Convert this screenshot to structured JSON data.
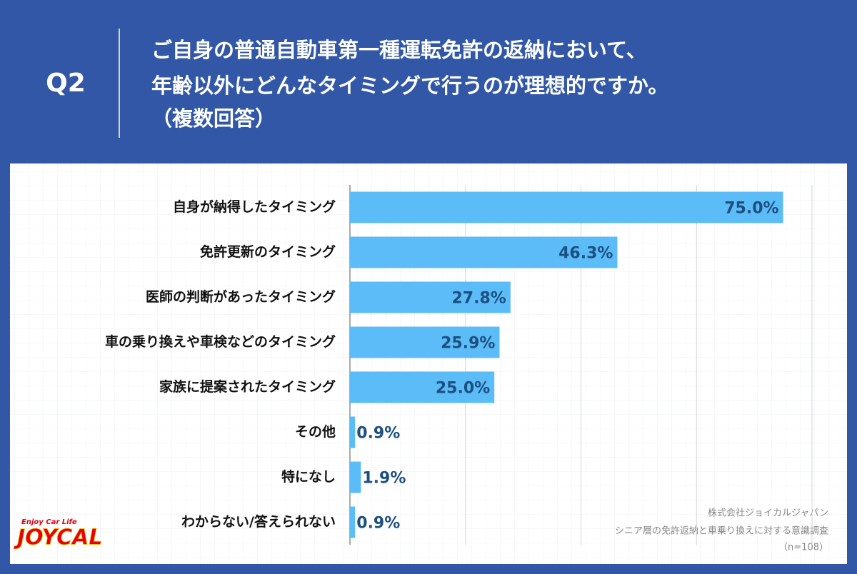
{
  "chart_data": {
    "type": "hbar",
    "question": "Q2",
    "title": [
      "ご自身の普通自動車第一種運転免許の返納において、",
      "年齢以外にどんなタイミングで行うのが理想的ですか。",
      "（複数回答）"
    ],
    "categories": [
      "自身が納得したタイミング",
      "免許更新のタイミング",
      "医師の判断があったタイミング",
      "車の乗り換えや車検などのタイミング",
      "家族に提案されたタイミング",
      "その他",
      "特になし",
      "わからない/答えられない"
    ],
    "values": [
      75.0,
      46.3,
      27.8,
      25.9,
      25.0,
      0.9,
      1.9,
      0.9
    ],
    "value_labels": [
      "75.0%",
      "46.3%",
      "27.8%",
      "25.9%",
      "25.0%",
      "0.9%",
      "1.9%",
      "0.9%"
    ],
    "color": "#5bbcf7",
    "xlim": [
      0,
      80
    ],
    "xticks": [
      0,
      20,
      40,
      60,
      80
    ],
    "grid": true,
    "source": [
      "株式会社ジョイカルジャパン",
      "シニア層の免許返納と車乗り換えに対する意識調査",
      "（n=108）"
    ],
    "logo": {
      "tagline": "Enjoy Car Life",
      "name": "JOYCAL"
    }
  }
}
